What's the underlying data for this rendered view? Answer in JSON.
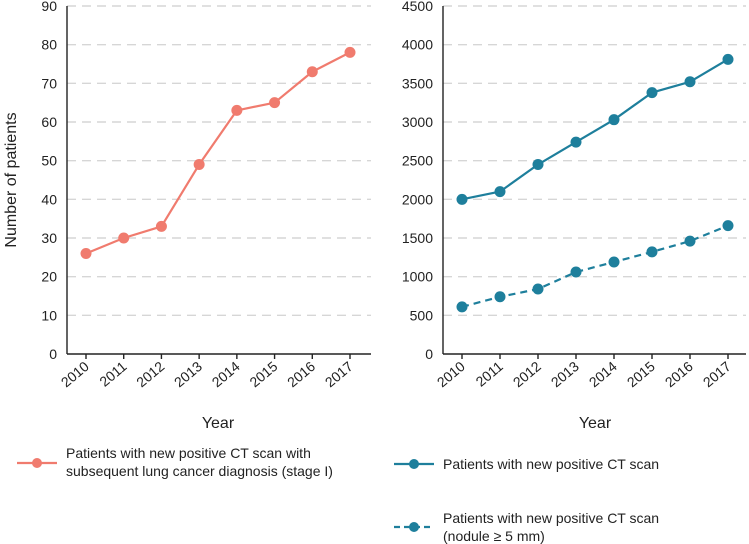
{
  "chart_data": [
    {
      "type": "line",
      "title": "",
      "xlabel": "Year",
      "ylabel": "Number of patients",
      "categories": [
        "2010",
        "2011",
        "2012",
        "2013",
        "2014",
        "2015",
        "2016",
        "2017"
      ],
      "ylim": [
        0,
        90
      ],
      "yticks": [
        "0",
        "10",
        "20",
        "30",
        "40",
        "50",
        "60",
        "70",
        "80",
        "90"
      ],
      "grid": true,
      "series": [
        {
          "name": "Patients with new positive CT scan with subsequent lung cancer diagnosis (stage I)",
          "legend_lines": [
            "Patients with new positive CT scan with",
            "subsequent lung cancer diagnosis (stage I)"
          ],
          "color": "#f07b6e",
          "dashed": false,
          "values": [
            26,
            30,
            33,
            49,
            63,
            65,
            73,
            78
          ]
        }
      ]
    },
    {
      "type": "line",
      "title": "",
      "xlabel": "Year",
      "ylabel": "",
      "categories": [
        "2010",
        "2011",
        "2012",
        "2013",
        "2014",
        "2015",
        "2016",
        "2017"
      ],
      "ylim": [
        0,
        4500
      ],
      "yticks": [
        "0",
        "500",
        "1000",
        "1500",
        "2000",
        "2500",
        "3000",
        "3500",
        "4000",
        "4500"
      ],
      "grid": true,
      "series": [
        {
          "name": "Patients with new positive CT scan",
          "legend_lines": [
            "Patients with new positive CT scan"
          ],
          "color": "#1e7f9c",
          "dashed": false,
          "values": [
            2000,
            2100,
            2450,
            2740,
            3030,
            3380,
            3520,
            3810
          ]
        },
        {
          "name": "Patients with new positive CT scan (nodule ≥ 5 mm)",
          "legend_lines": [
            "Patients with new positive CT scan",
            "(nodule ≥ 5 mm)"
          ],
          "color": "#1e7f9c",
          "dashed": true,
          "values": [
            610,
            740,
            840,
            1060,
            1190,
            1320,
            1460,
            1660
          ]
        }
      ]
    }
  ]
}
